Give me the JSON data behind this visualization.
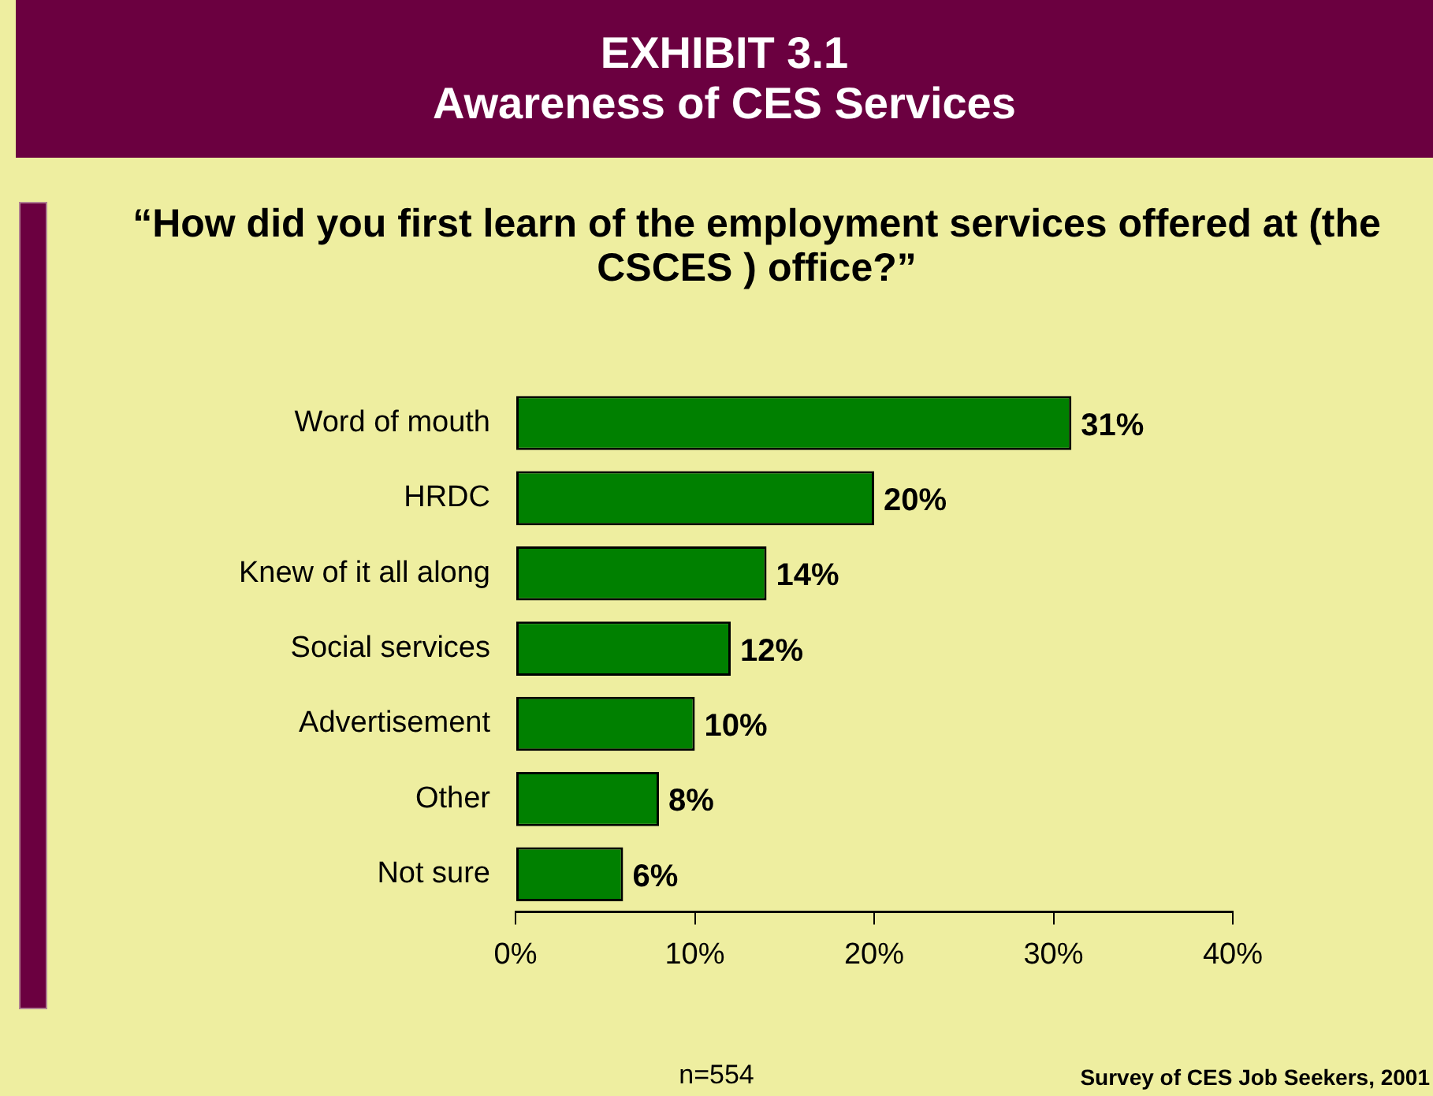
{
  "chart_data": {
    "type": "bar",
    "orientation": "horizontal",
    "title": "EXHIBIT 3.1\nAwareness of CES Services",
    "subtitle": "“How did you first learn of the employment services offered at (the CSCES ) office?”",
    "categories": [
      "Word of mouth",
      "HRDC",
      "Knew of it all along",
      "Social services",
      "Advertisement",
      "Other",
      "Not sure"
    ],
    "values": [
      31,
      20,
      14,
      12,
      10,
      8,
      6
    ],
    "value_labels": [
      "31%",
      "20%",
      "14%",
      "12%",
      "10%",
      "8%",
      "6%"
    ],
    "color": "#008000",
    "xlim": [
      0,
      40
    ],
    "xticks": [
      {
        "value": 0,
        "label": "0%"
      },
      {
        "value": 10,
        "label": "10%"
      },
      {
        "value": 20,
        "label": "20%"
      },
      {
        "value": 30,
        "label": "30%"
      },
      {
        "value": 40,
        "label": "40%"
      }
    ],
    "annotations": [
      "n=554",
      "Survey of CES Job Seekers, 2001"
    ]
  }
}
